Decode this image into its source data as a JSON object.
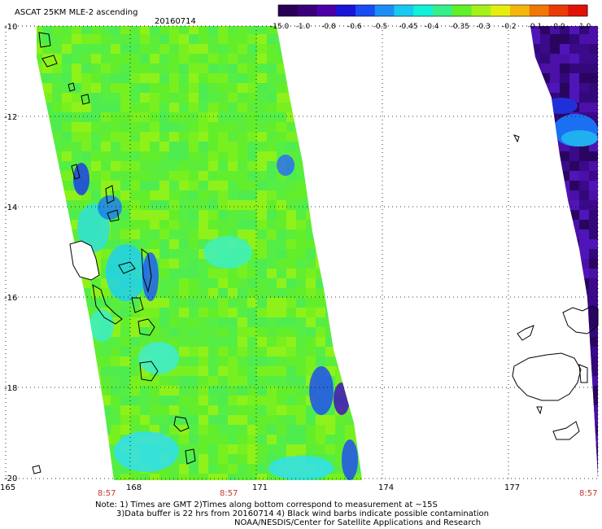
{
  "header": {
    "title": "ASCAT 25KM MLE-2 ascending",
    "date": "20160714"
  },
  "colorbar": {
    "labels": [
      "-15.0",
      "-1.0",
      "-0.8",
      "-0.6",
      "-0.5",
      "-0.45",
      "-0.4",
      "-0.35",
      "-0.3",
      "-0.2",
      "-0.1",
      "0.0",
      "1.0"
    ],
    "colors": [
      "#2a0057",
      "#3a007a",
      "#4b00a8",
      "#1a14d8",
      "#1a4cf2",
      "#1d8ef5",
      "#19c8f0",
      "#12f0d8",
      "#35f08a",
      "#62ef2a",
      "#a4f21a",
      "#e6ee10",
      "#f5b50f",
      "#f07808",
      "#ea3a08",
      "#e01208"
    ]
  },
  "axes": {
    "lat_labels": [
      "-10",
      "-12",
      "-14",
      "-16",
      "-18",
      "-20"
    ],
    "lon_labels": [
      "165",
      "168",
      "171",
      "174",
      "177"
    ]
  },
  "pass_times": [
    "8:57",
    "8:57",
    "8:57"
  ],
  "footer": {
    "line1": "Note: 1) Times are GMT 2)Times along bottom correspond to measurement at ~15S",
    "line2": "3)Data buffer is 22 hrs from 20160714 4) Black wind barbs indicate possible contamination",
    "line3": "NOAA/NESDIS/Center for Satellite Applications and Research"
  }
}
